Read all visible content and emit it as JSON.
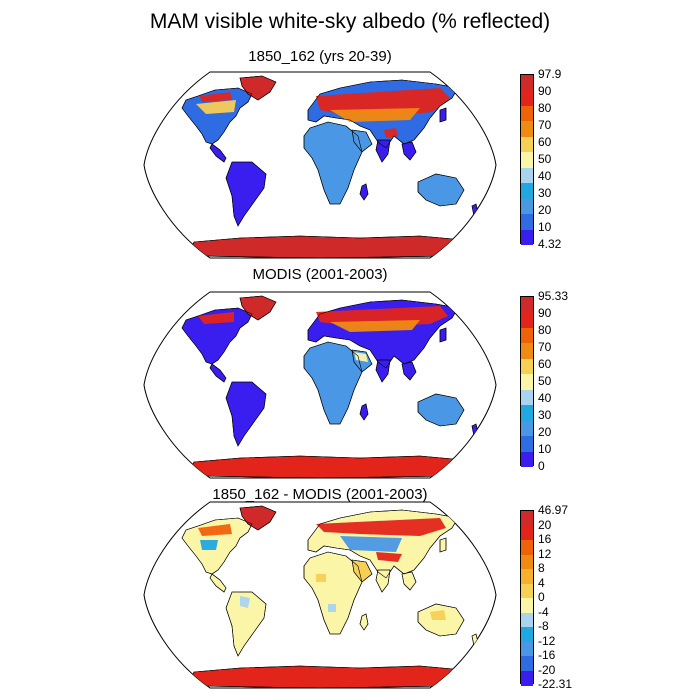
{
  "title": "MAM visible white-sky albedo (% reflected)",
  "colors": {
    "blue_dark": "#3a1ef0",
    "blue_mid": "#2f6be3",
    "blue_light": "#4a97e6",
    "cyan": "#21a8e0",
    "lightblue": "#a9d3ef",
    "paleyellow": "#fbf5a8",
    "yellow_orange": "#f8cf55",
    "orange_light": "#f7b02d",
    "orange": "#f18a12",
    "orange_red": "#f0620a",
    "red": "#e3241b",
    "dark_red": "#cf2a29"
  },
  "panels": [
    {
      "title": "1850_162 (yrs 20-39)",
      "colorbar": {
        "labels": [
          "97.9",
          "90",
          "80",
          "70",
          "60",
          "50",
          "40",
          "30",
          "20",
          "10",
          "4.32"
        ],
        "colors": [
          "#cf2a29",
          "#e3241b",
          "#f0620a",
          "#f18a12",
          "#f8cf55",
          "#fbf5a8",
          "#a9d3ef",
          "#21a8e0",
          "#4a97e6",
          "#2f6be3",
          "#3a1ef0"
        ]
      },
      "scheme": "model"
    },
    {
      "title": "MODIS (2001-2003)",
      "colorbar": {
        "labels": [
          "95.33",
          "90",
          "80",
          "70",
          "60",
          "50",
          "40",
          "30",
          "20",
          "10",
          "0"
        ],
        "colors": [
          "#cf2a29",
          "#e3241b",
          "#f0620a",
          "#f18a12",
          "#f8cf55",
          "#fbf5a8",
          "#a9d3ef",
          "#21a8e0",
          "#4a97e6",
          "#2f6be3",
          "#3a1ef0"
        ]
      },
      "scheme": "obs"
    },
    {
      "title": "1850_162 - MODIS (2001-2003)",
      "colorbar": {
        "labels": [
          "46.97",
          "20",
          "16",
          "12",
          "8",
          "4",
          "0",
          "-4",
          "-8",
          "-12",
          "-16",
          "-20",
          "-22.31"
        ],
        "colors": [
          "#cf2a29",
          "#e3241b",
          "#f0620a",
          "#f18a12",
          "#f7b02d",
          "#f8cf55",
          "#fbf5a8",
          "#a9d3ef",
          "#21a8e0",
          "#4a97e6",
          "#2f6be3",
          "#3a1ef0"
        ]
      },
      "scheme": "diff"
    }
  ]
}
